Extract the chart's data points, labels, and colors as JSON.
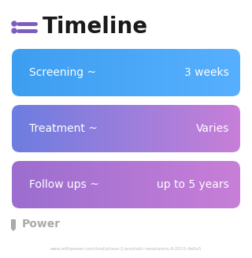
{
  "title": "Timeline",
  "title_icon_color": "#7c5cbf",
  "background_color": "#ffffff",
  "rows": [
    {
      "label": "Screening ~",
      "value": "3 weeks",
      "color_left": "#3d9ef0",
      "color_right": "#57b0ff"
    },
    {
      "label": "Treatment ~",
      "value": "Varies",
      "color_left": "#6d7de0",
      "color_right": "#c87fd8"
    },
    {
      "label": "Follow ups ~",
      "value": "up to 5 years",
      "color_left": "#9b6ed0",
      "color_right": "#c87fd8"
    }
  ],
  "watermark": "Power",
  "watermark_color": "#aaaaaa",
  "url_text": "www.withpower.com/trial/phase-2-prostatic-neoplasms-9-2015-4e6a5",
  "url_color": "#bbbbbb",
  "figsize": [
    3.2,
    3.27
  ],
  "dpi": 100
}
